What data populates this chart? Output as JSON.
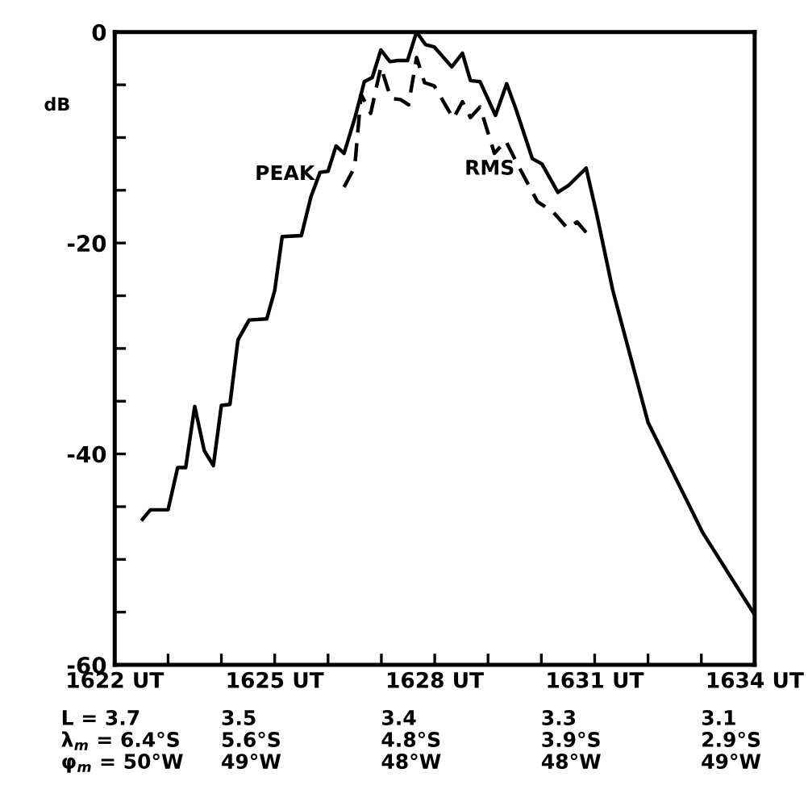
{
  "chart_data": {
    "type": "line",
    "ylabel": "dB",
    "legend": false,
    "grid": false,
    "xlim": [
      1622,
      1634
    ],
    "ylim": [
      -60,
      0
    ],
    "annotations": [
      "L = 3.7\nλ$_{m}$ = 6.4°S\nφ$_{m}$ = 50°W",
      "3.5\n5.6°S\n49°W",
      "3.4\n4.8°S\n48°W",
      "3.3\n3.9°S\n48°W",
      "3.1\n2.9°S\n49°W"
    ],
    "xticks": [
      {
        "value": 1622,
        "label": "1622 UT"
      },
      {
        "value": 1623,
        "label": null
      },
      {
        "value": 1624,
        "label": null
      },
      {
        "value": 1625,
        "label": "1625 UT"
      },
      {
        "value": 1626,
        "label": null
      },
      {
        "value": 1627,
        "label": null
      },
      {
        "value": 1628,
        "label": "1628 UT"
      },
      {
        "value": 1629,
        "label": null
      },
      {
        "value": 1630,
        "label": null
      },
      {
        "value": 1631,
        "label": "1631 UT"
      },
      {
        "value": 1632,
        "label": null
      },
      {
        "value": 1633,
        "label": null
      },
      {
        "value": 1634,
        "label": "1634 UT"
      }
    ],
    "yticks": [
      {
        "value": -60,
        "label": "-60"
      },
      {
        "value": -55,
        "label": null
      },
      {
        "value": -50,
        "label": null
      },
      {
        "value": -45,
        "label": null
      },
      {
        "value": -40,
        "label": "-40"
      },
      {
        "value": -35,
        "label": null
      },
      {
        "value": -30,
        "label": null
      },
      {
        "value": -25,
        "label": null
      },
      {
        "value": -20,
        "label": "-20"
      },
      {
        "value": -15,
        "label": null
      },
      {
        "value": -10,
        "label": null
      },
      {
        "value": -5,
        "label": null
      },
      {
        "value": 0,
        "label": "0"
      }
    ],
    "series": [
      {
        "name": "PEAK",
        "color": "#000000",
        "line_style": "solid",
        "x": [
          1622.52,
          1622.67,
          1623.0,
          1623.18,
          1623.33,
          1623.5,
          1623.68,
          1623.85,
          1624.0,
          1624.16,
          1624.31,
          1624.52,
          1624.85,
          1625.0,
          1625.14,
          1625.5,
          1625.68,
          1625.85,
          1626.0,
          1626.15,
          1626.3,
          1626.5,
          1626.68,
          1626.83,
          1626.99,
          1627.16,
          1627.31,
          1627.49,
          1627.66,
          1627.83,
          1627.99,
          1628.32,
          1628.52,
          1628.67,
          1628.85,
          1629.14,
          1629.35,
          1629.53,
          1629.83,
          1630.01,
          1630.31,
          1630.52,
          1630.84,
          1631.04,
          1631.34,
          1632.0,
          1633.03,
          1633.98
        ],
        "values": [
          -46.2,
          -45.3,
          -45.3,
          -41.3,
          -41.3,
          -35.5,
          -39.7,
          -41.1,
          -35.4,
          -35.3,
          -29.2,
          -27.3,
          -27.2,
          -24.5,
          -19.4,
          -19.3,
          -15.6,
          -13.3,
          -13.2,
          -10.8,
          -11.5,
          -8.2,
          -4.7,
          -4.3,
          -1.7,
          -2.8,
          -2.7,
          -2.7,
          0,
          -1.2,
          -1.4,
          -3.3,
          -2.0,
          -4.6,
          -4.7,
          -7.9,
          -4.9,
          -7.4,
          -12.0,
          -12.5,
          -15.2,
          -14.5,
          -12.9,
          -17.3,
          -24.5,
          -37.0,
          -47.5,
          -55.1
        ]
      },
      {
        "name": "RMS",
        "color": "#000000",
        "line_style": "dashed",
        "x": [
          1626.3,
          1626.5,
          1626.62,
          1626.8,
          1626.99,
          1627.18,
          1627.36,
          1627.51,
          1627.66,
          1627.81,
          1627.99,
          1628.35,
          1628.52,
          1628.67,
          1628.85,
          1629.12,
          1629.33,
          1629.55,
          1629.93,
          1630.21,
          1630.49,
          1630.67,
          1630.84
        ],
        "values": [
          -14.7,
          -12.8,
          -5.9,
          -7.7,
          -3.3,
          -6.3,
          -6.4,
          -6.9,
          -2.4,
          -4.8,
          -5.1,
          -8.2,
          -6.6,
          -8.1,
          -7.1,
          -11.5,
          -10.3,
          -12.5,
          -16.1,
          -17.0,
          -18.6,
          -18.0,
          -19.0
        ]
      }
    ]
  }
}
